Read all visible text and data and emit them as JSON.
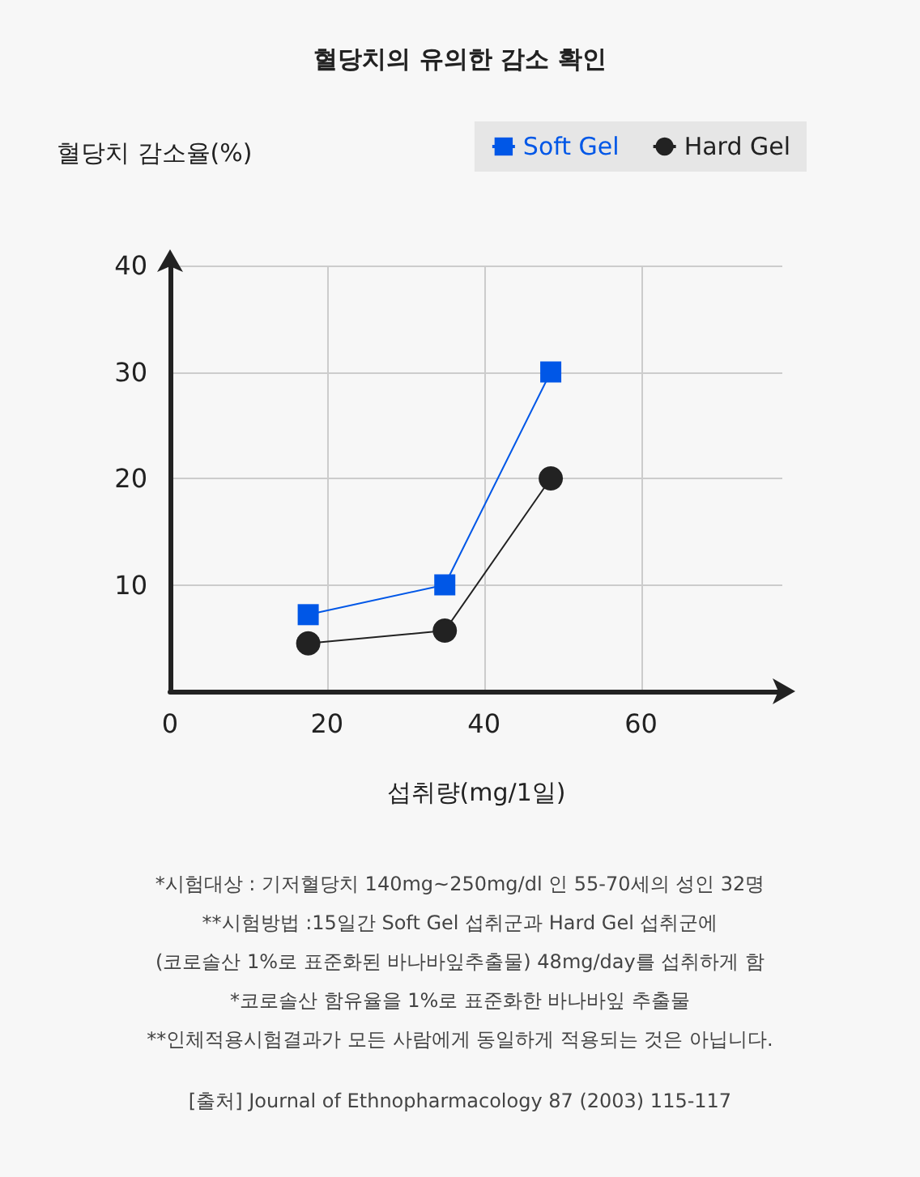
{
  "chart_data": {
    "type": "line",
    "title": "혈당치의 유의한 감소 확인",
    "xlabel": "섭취량(mg/1일)",
    "ylabel": "혈당치 감소율(%)",
    "x": [
      17.6,
      35,
      48.5
    ],
    "series": [
      {
        "name": "Soft Gel",
        "color": "#0057e7",
        "marker": "square",
        "values": [
          7.2,
          10,
          30
        ]
      },
      {
        "name": "Hard Gel",
        "color": "#222222",
        "marker": "circle",
        "values": [
          4.5,
          5.7,
          20
        ]
      }
    ],
    "xlim": [
      0,
      78
    ],
    "xticks": [
      0,
      20,
      40,
      60
    ],
    "ylim": [
      0,
      40
    ],
    "yticks": [
      10,
      20,
      30,
      40
    ],
    "grid": true,
    "legend": "top right",
    "annotations": [
      "*시험대상 : 기저혈당치 140mg~250mg/dl 인 55-70세의 성인 32명",
      "**시험방법 :15일간 Soft Gel 섭취군과 Hard Gel 섭취군에",
      "(코로솔산 1%로 표준화된 바나바잎추출물) 48mg/day를 섭취하게 함",
      "*코로솔산 함유율을 1%로 표준화한 바나바잎 추출물",
      "**인체적용시험결과가 모든 사람에게 동일하게 적용되는 것은 아닙니다.",
      "[출처] Journal of Ethnopharmacology 87 (2003) 115-117"
    ]
  }
}
